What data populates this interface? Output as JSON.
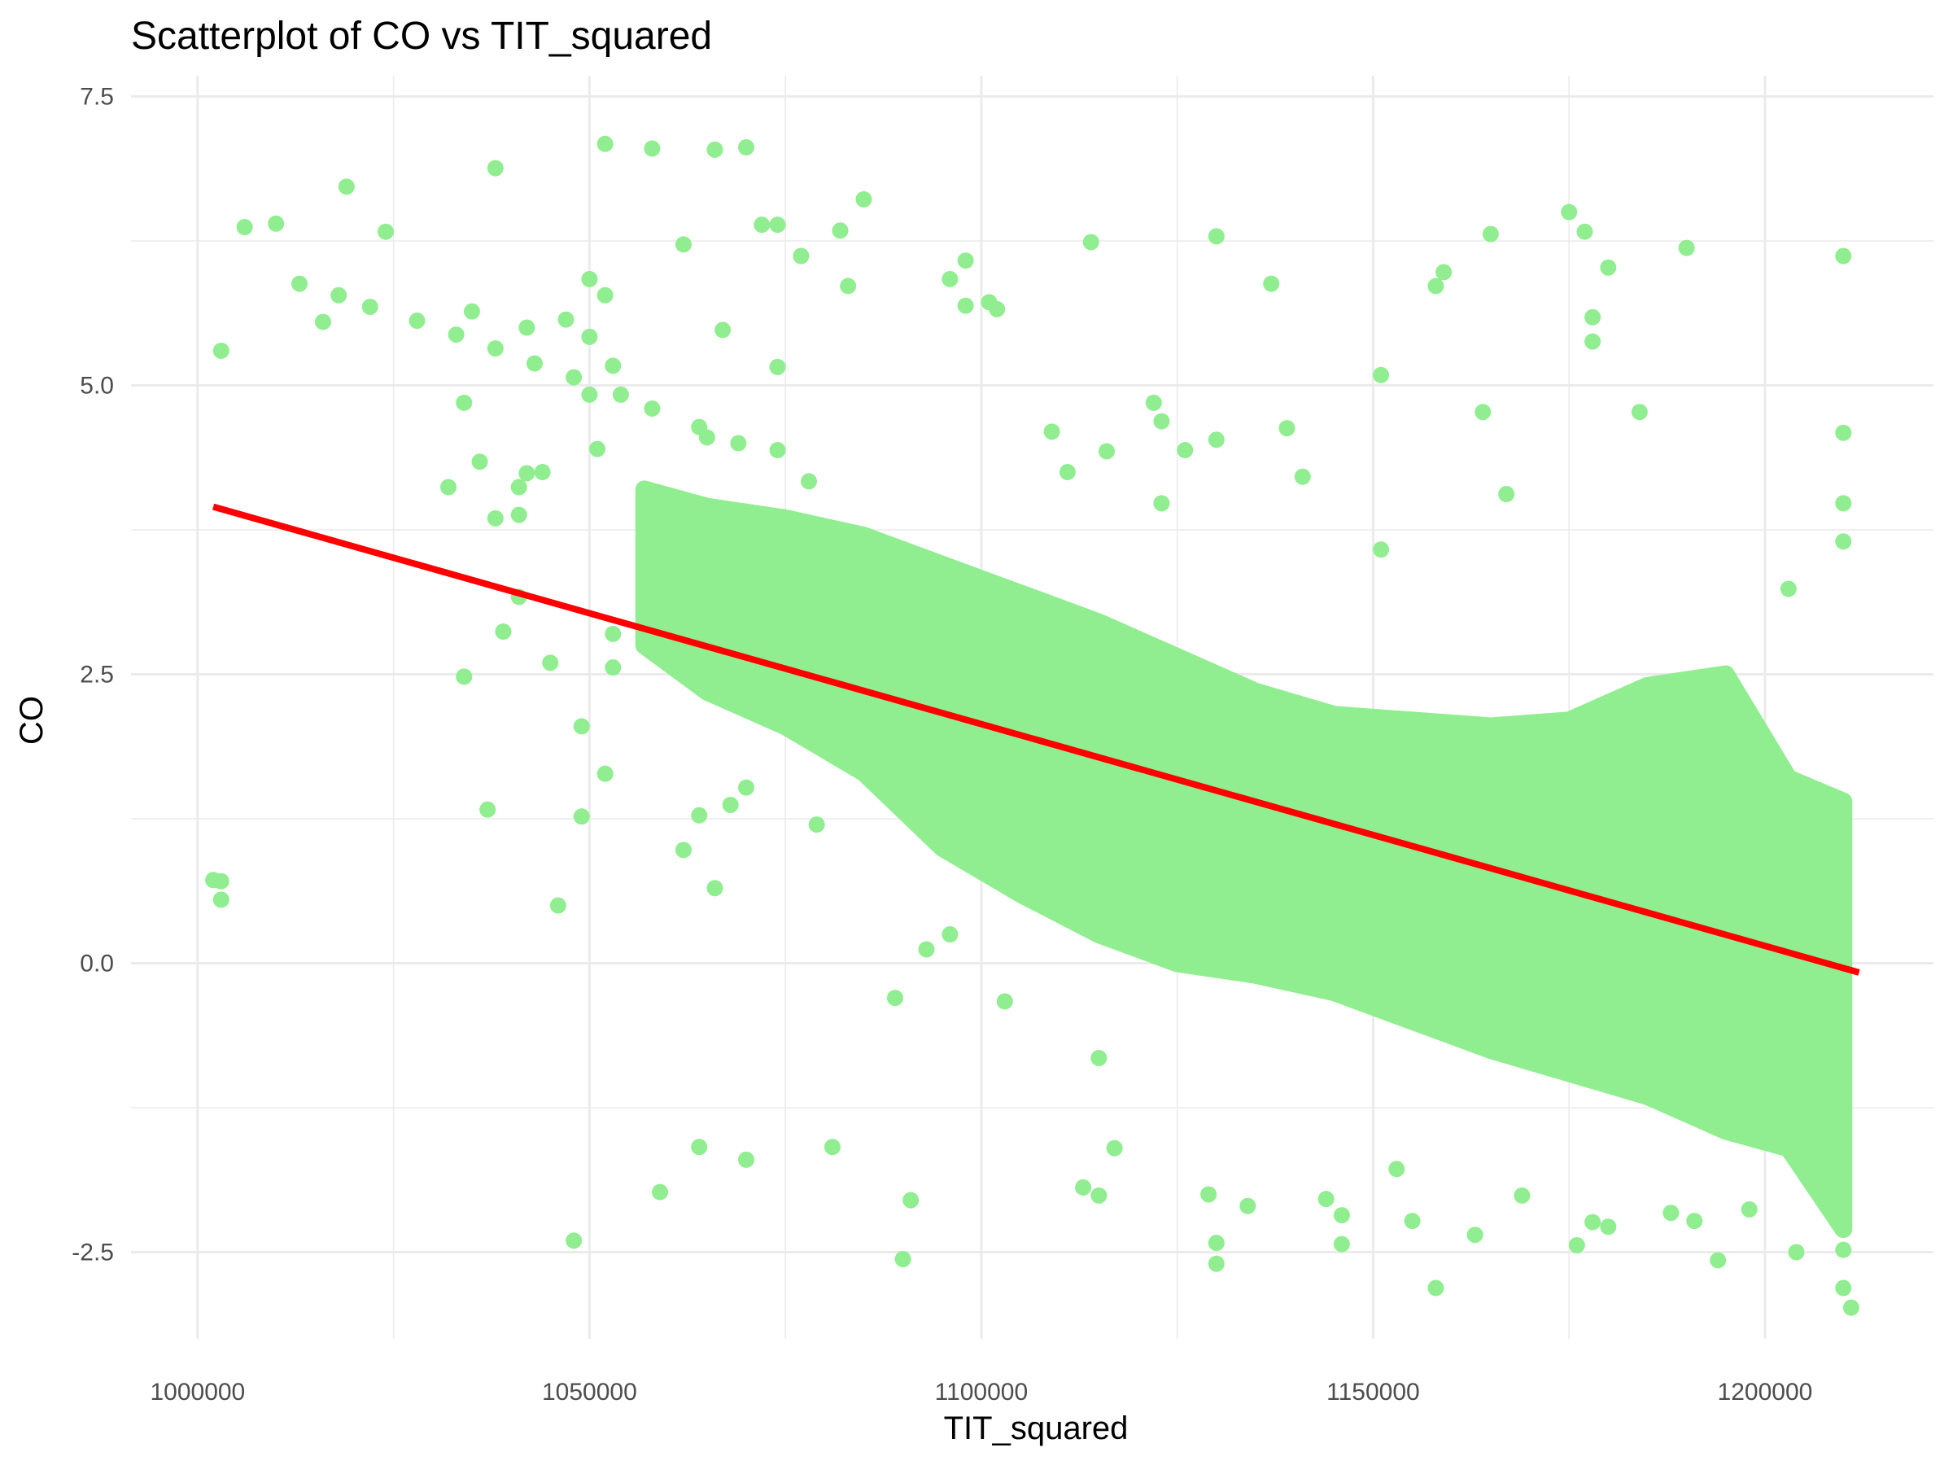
{
  "chart_data": {
    "type": "scatter",
    "title": "Scatterplot of CO vs TIT_squared",
    "xlabel": "TIT_squared",
    "ylabel": "CO",
    "xlim": [
      991500,
      1221500
    ],
    "ylim": [
      -3.25,
      7.68
    ],
    "x_ticks": [
      1000000,
      1050000,
      1100000,
      1150000,
      1200000
    ],
    "x_tick_labels": [
      "1000000",
      "1050000",
      "1100000",
      "1150000",
      "1200000"
    ],
    "y_ticks": [
      -2.5,
      0.0,
      2.5,
      5.0,
      7.5
    ],
    "y_tick_labels": [
      "-2.5",
      "0.0",
      "2.5",
      "5.0",
      "7.5"
    ],
    "grid": true,
    "legend": "none",
    "colors": {
      "points": "#90ee90",
      "trend_line": "#ff0000",
      "background": "#ffffff",
      "grid": "#ebebeb"
    },
    "series": [
      {
        "type": "scatter",
        "cloud_envelope": [
          [
            1057000,
            2.75,
            4.1
          ],
          [
            1065000,
            2.35,
            3.95
          ],
          [
            1075000,
            2.05,
            3.85
          ],
          [
            1085000,
            1.65,
            3.7
          ],
          [
            1095000,
            1.0,
            3.45
          ],
          [
            1105000,
            0.6,
            3.2
          ],
          [
            1115000,
            0.25,
            2.95
          ],
          [
            1125000,
            0.0,
            2.65
          ],
          [
            1135000,
            -0.1,
            2.35
          ],
          [
            1145000,
            -0.25,
            2.15
          ],
          [
            1155000,
            -0.5,
            2.1
          ],
          [
            1165000,
            -0.75,
            2.05
          ],
          [
            1175000,
            -0.95,
            2.1
          ],
          [
            1185000,
            -1.15,
            2.4
          ],
          [
            1195000,
            -1.45,
            2.5
          ],
          [
            1203000,
            -1.6,
            1.6
          ],
          [
            1210000,
            -2.3,
            1.4
          ]
        ],
        "points": [
          [
            1002000,
            0.72
          ],
          [
            1003000,
            0.71
          ],
          [
            1003000,
            0.55
          ],
          [
            1003000,
            5.3
          ],
          [
            1006000,
            6.37
          ],
          [
            1010000,
            6.4
          ],
          [
            1013000,
            5.88
          ],
          [
            1016000,
            5.55
          ],
          [
            1018000,
            5.78
          ],
          [
            1019000,
            6.72
          ],
          [
            1022000,
            5.68
          ],
          [
            1024000,
            6.33
          ],
          [
            1028000,
            5.56
          ],
          [
            1032000,
            4.12
          ],
          [
            1033000,
            5.44
          ],
          [
            1034000,
            4.85
          ],
          [
            1034000,
            2.48
          ],
          [
            1035000,
            5.64
          ],
          [
            1036000,
            4.34
          ],
          [
            1037000,
            1.33
          ],
          [
            1038000,
            6.88
          ],
          [
            1038000,
            5.32
          ],
          [
            1038000,
            3.85
          ],
          [
            1039000,
            2.87
          ],
          [
            1041000,
            4.12
          ],
          [
            1041000,
            3.88
          ],
          [
            1041000,
            3.17
          ],
          [
            1042000,
            4.24
          ],
          [
            1042000,
            5.5
          ],
          [
            1043000,
            5.19
          ],
          [
            1044000,
            4.25
          ],
          [
            1045000,
            2.6
          ],
          [
            1046000,
            0.5
          ],
          [
            1047000,
            5.57
          ],
          [
            1048000,
            5.07
          ],
          [
            1048000,
            -2.4
          ],
          [
            1049000,
            1.27
          ],
          [
            1049000,
            2.05
          ],
          [
            1050000,
            5.42
          ],
          [
            1050000,
            4.92
          ],
          [
            1050000,
            5.92
          ],
          [
            1051000,
            4.45
          ],
          [
            1052000,
            7.09
          ],
          [
            1052000,
            5.78
          ],
          [
            1052000,
            1.64
          ],
          [
            1053000,
            5.17
          ],
          [
            1053000,
            2.56
          ],
          [
            1053000,
            2.85
          ],
          [
            1054000,
            4.92
          ],
          [
            1058000,
            7.05
          ],
          [
            1058000,
            4.8
          ],
          [
            1059000,
            -1.98
          ],
          [
            1062000,
            6.22
          ],
          [
            1062000,
            0.98
          ],
          [
            1064000,
            4.64
          ],
          [
            1064000,
            -1.59
          ],
          [
            1064000,
            1.28
          ],
          [
            1065000,
            4.55
          ],
          [
            1066000,
            7.04
          ],
          [
            1066000,
            0.65
          ],
          [
            1067000,
            5.48
          ],
          [
            1068000,
            1.37
          ],
          [
            1069000,
            4.5
          ],
          [
            1070000,
            7.06
          ],
          [
            1070000,
            1.52
          ],
          [
            1070000,
            -1.7
          ],
          [
            1072000,
            6.39
          ],
          [
            1074000,
            6.39
          ],
          [
            1074000,
            5.16
          ],
          [
            1074000,
            4.44
          ],
          [
            1077000,
            6.12
          ],
          [
            1078000,
            4.17
          ],
          [
            1079000,
            1.2
          ],
          [
            1081000,
            -1.59
          ],
          [
            1082000,
            6.34
          ],
          [
            1083000,
            5.86
          ],
          [
            1085000,
            6.61
          ],
          [
            1089000,
            -0.3
          ],
          [
            1090000,
            -2.56
          ],
          [
            1091000,
            -2.05
          ],
          [
            1093000,
            0.12
          ],
          [
            1096000,
            5.92
          ],
          [
            1096000,
            0.25
          ],
          [
            1098000,
            6.08
          ],
          [
            1098000,
            5.69
          ],
          [
            1101000,
            5.72
          ],
          [
            1102000,
            5.66
          ],
          [
            1103000,
            -0.33
          ],
          [
            1109000,
            4.6
          ],
          [
            1111000,
            4.25
          ],
          [
            1113000,
            -1.94
          ],
          [
            1114000,
            6.24
          ],
          [
            1115000,
            -2.01
          ],
          [
            1115000,
            -0.82
          ],
          [
            1116000,
            4.43
          ],
          [
            1117000,
            -1.6
          ],
          [
            1122000,
            4.85
          ],
          [
            1123000,
            4.69
          ],
          [
            1123000,
            3.98
          ],
          [
            1126000,
            4.44
          ],
          [
            1129000,
            -2.0
          ],
          [
            1130000,
            6.29
          ],
          [
            1130000,
            4.53
          ],
          [
            1130000,
            -2.42
          ],
          [
            1130000,
            -2.6
          ],
          [
            1134000,
            -2.1
          ],
          [
            1137000,
            5.88
          ],
          [
            1139000,
            4.63
          ],
          [
            1141000,
            4.21
          ],
          [
            1144000,
            -2.04
          ],
          [
            1146000,
            -2.43
          ],
          [
            1146000,
            -2.18
          ],
          [
            1151000,
            5.09
          ],
          [
            1151000,
            3.58
          ],
          [
            1153000,
            -1.78
          ],
          [
            1155000,
            -2.23
          ],
          [
            1158000,
            -2.81
          ],
          [
            1158000,
            5.86
          ],
          [
            1159000,
            5.98
          ],
          [
            1163000,
            -2.35
          ],
          [
            1164000,
            4.77
          ],
          [
            1165000,
            6.31
          ],
          [
            1167000,
            4.06
          ],
          [
            1169000,
            -2.01
          ],
          [
            1175000,
            6.5
          ],
          [
            1176000,
            -2.44
          ],
          [
            1177000,
            6.33
          ],
          [
            1178000,
            5.59
          ],
          [
            1178000,
            5.38
          ],
          [
            1178000,
            -2.24
          ],
          [
            1180000,
            6.02
          ],
          [
            1180000,
            -2.28
          ],
          [
            1184000,
            4.77
          ],
          [
            1188000,
            -2.16
          ],
          [
            1190000,
            6.19
          ],
          [
            1191000,
            -2.23
          ],
          [
            1194000,
            -2.57
          ],
          [
            1198000,
            -2.13
          ],
          [
            1203000,
            3.24
          ],
          [
            1204000,
            -2.5
          ],
          [
            1210000,
            6.12
          ],
          [
            1210000,
            4.59
          ],
          [
            1210000,
            3.98
          ],
          [
            1210000,
            3.65
          ],
          [
            1210000,
            -2.48
          ],
          [
            1210000,
            -2.81
          ],
          [
            1211000,
            -2.98
          ]
        ]
      },
      {
        "type": "line",
        "points": [
          [
            1002000,
            3.95
          ],
          [
            1212000,
            -0.08
          ]
        ]
      }
    ]
  }
}
